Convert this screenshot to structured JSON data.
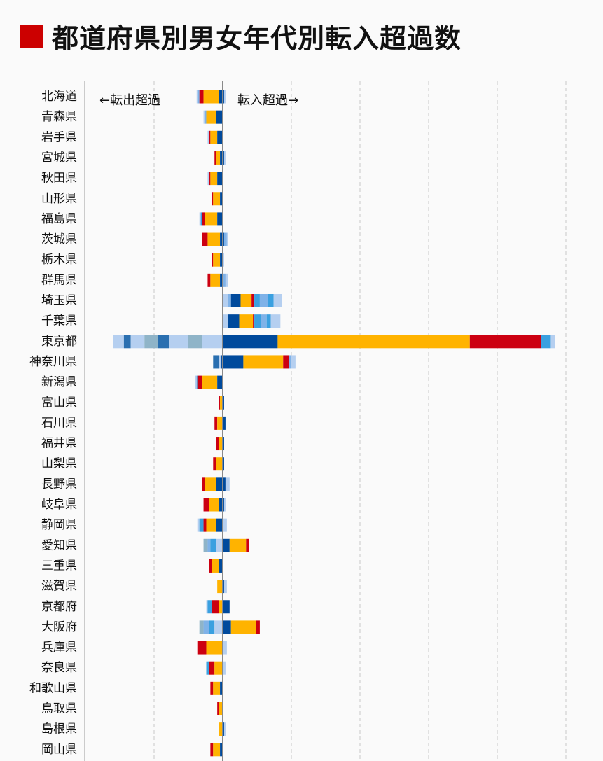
{
  "title": "都道府県別男女年代別転入超過数",
  "colors": {
    "title_mark": "#cc0000",
    "segments": [
      "#b5cff0",
      "#7fb2e8",
      "#3aa0e0",
      "#004a9c",
      "#ffb300",
      "#cc0011",
      "#2a6fb0",
      "#8fb4c8"
    ]
  },
  "chart_data": {
    "type": "bar",
    "orientation": "horizontal-diverging-stacked",
    "title": "都道府県別男女年代別転入超過数",
    "annotations": {
      "left": "←転出超過",
      "right": "転入超過→"
    },
    "grid": true,
    "xlim": [
      -100,
      250
    ],
    "gridlines": [
      -50,
      50,
      100,
      150,
      200,
      250
    ],
    "categories": [
      "北海道",
      "青森県",
      "岩手県",
      "宮城県",
      "秋田県",
      "山形県",
      "福島県",
      "茨城県",
      "栃木県",
      "群馬県",
      "埼玉県",
      "千葉県",
      "東京都",
      "神奈川県",
      "新潟県",
      "富山県",
      "石川県",
      "福井県",
      "山梨県",
      "長野県",
      "岐阜県",
      "静岡県",
      "愛知県",
      "三重県",
      "滋賀県",
      "京都府",
      "大阪府",
      "兵庫県",
      "奈良県",
      "和歌山県",
      "鳥取県",
      "島根県",
      "岡山県"
    ],
    "bars": [
      {
        "neg": [
          [
            0,
            1
          ],
          [
            1,
            1
          ],
          [
            5,
            3
          ],
          [
            4,
            11
          ],
          [
            3,
            3
          ]
        ],
        "pos": [
          [
            3,
            1
          ],
          [
            0,
            1
          ]
        ]
      },
      {
        "neg": [
          [
            0,
            1
          ],
          [
            1,
            1
          ],
          [
            4,
            7
          ],
          [
            3,
            5
          ]
        ],
        "pos": []
      },
      {
        "neg": [
          [
            0,
            1
          ],
          [
            5,
            1
          ],
          [
            4,
            5
          ],
          [
            3,
            4
          ]
        ],
        "pos": []
      },
      {
        "neg": [
          [
            5,
            1
          ],
          [
            4,
            3
          ],
          [
            3,
            2
          ]
        ],
        "pos": [
          [
            3,
            1
          ],
          [
            0,
            1
          ]
        ]
      },
      {
        "neg": [
          [
            0,
            1
          ],
          [
            5,
            1
          ],
          [
            4,
            5
          ],
          [
            3,
            4
          ]
        ],
        "pos": []
      },
      {
        "neg": [
          [
            5,
            1
          ],
          [
            4,
            5
          ],
          [
            3,
            2
          ]
        ],
        "pos": []
      },
      {
        "neg": [
          [
            0,
            1
          ],
          [
            2,
            1
          ],
          [
            5,
            2
          ],
          [
            4,
            9
          ],
          [
            3,
            4
          ]
        ],
        "pos": []
      },
      {
        "neg": [
          [
            5,
            4
          ],
          [
            4,
            9
          ],
          [
            3,
            2
          ]
        ],
        "pos": [
          [
            3,
            1
          ],
          [
            1,
            2
          ],
          [
            0,
            1
          ]
        ]
      },
      {
        "neg": [
          [
            5,
            1
          ],
          [
            4,
            5
          ],
          [
            3,
            2
          ]
        ],
        "pos": [
          [
            0,
            1
          ]
        ]
      },
      {
        "neg": [
          [
            5,
            2
          ],
          [
            4,
            7
          ],
          [
            3,
            2
          ]
        ],
        "pos": [
          [
            1,
            2
          ],
          [
            0,
            2
          ]
        ]
      },
      {
        "neg": [],
        "pos": [
          [
            0,
            4
          ],
          [
            1,
            2
          ],
          [
            3,
            7
          ],
          [
            4,
            8
          ],
          [
            5,
            2
          ],
          [
            2,
            4
          ],
          [
            1,
            6
          ],
          [
            2,
            4
          ],
          [
            0,
            6
          ]
        ]
      },
      {
        "neg": [],
        "pos": [
          [
            0,
            4
          ],
          [
            3,
            8
          ],
          [
            4,
            10
          ],
          [
            5,
            1
          ],
          [
            2,
            5
          ],
          [
            1,
            4
          ],
          [
            2,
            3
          ],
          [
            0,
            7
          ]
        ]
      },
      {
        "neg": [
          [
            0,
            8
          ],
          [
            6,
            5
          ],
          [
            0,
            10
          ],
          [
            7,
            10
          ],
          [
            6,
            8
          ],
          [
            0,
            14
          ],
          [
            7,
            10
          ],
          [
            0,
            15
          ]
        ],
        "pos": [
          [
            3,
            40
          ],
          [
            4,
            140
          ],
          [
            5,
            52
          ],
          [
            2,
            7
          ],
          [
            0,
            3
          ]
        ]
      },
      {
        "neg": [
          [
            6,
            4
          ],
          [
            0,
            2
          ],
          [
            3,
            1
          ]
        ],
        "pos": [
          [
            3,
            15
          ],
          [
            4,
            29
          ],
          [
            5,
            4
          ],
          [
            1,
            2
          ],
          [
            0,
            3
          ]
        ]
      },
      {
        "neg": [
          [
            0,
            1
          ],
          [
            2,
            1
          ],
          [
            5,
            3
          ],
          [
            4,
            11
          ],
          [
            3,
            4
          ]
        ],
        "pos": []
      },
      {
        "neg": [
          [
            5,
            1
          ],
          [
            4,
            2
          ]
        ],
        "pos": [
          [
            3,
            1
          ]
        ]
      },
      {
        "neg": [
          [
            5,
            2
          ],
          [
            4,
            4
          ]
        ],
        "pos": [
          [
            3,
            2
          ]
        ]
      },
      {
        "neg": [
          [
            5,
            2
          ],
          [
            4,
            3
          ]
        ],
        "pos": [
          [
            3,
            1
          ]
        ]
      },
      {
        "neg": [
          [
            5,
            2
          ],
          [
            4,
            5
          ]
        ],
        "pos": [
          [
            3,
            1
          ]
        ]
      },
      {
        "neg": [
          [
            5,
            2
          ],
          [
            4,
            8
          ],
          [
            3,
            5
          ]
        ],
        "pos": [
          [
            3,
            2
          ],
          [
            0,
            3
          ]
        ]
      },
      {
        "neg": [
          [
            5,
            4
          ],
          [
            4,
            7
          ],
          [
            3,
            3
          ]
        ],
        "pos": [
          [
            3,
            1
          ],
          [
            0,
            1
          ]
        ]
      },
      {
        "neg": [
          [
            0,
            1
          ],
          [
            2,
            3
          ],
          [
            5,
            2
          ],
          [
            4,
            7
          ],
          [
            3,
            5
          ]
        ],
        "pos": [
          [
            0,
            3
          ]
        ]
      },
      {
        "neg": [
          [
            7,
            3
          ],
          [
            1,
            2
          ],
          [
            2,
            4
          ],
          [
            0,
            5
          ]
        ],
        "pos": [
          [
            3,
            5
          ],
          [
            4,
            12
          ],
          [
            5,
            2
          ]
        ]
      },
      {
        "neg": [
          [
            5,
            2
          ],
          [
            4,
            5
          ],
          [
            3,
            3
          ]
        ],
        "pos": []
      },
      {
        "neg": [
          [
            4,
            4
          ]
        ],
        "pos": [
          [
            3,
            1
          ],
          [
            0,
            2
          ]
        ]
      },
      {
        "neg": [
          [
            0,
            1
          ],
          [
            2,
            3
          ],
          [
            5,
            5
          ],
          [
            4,
            3
          ]
        ],
        "pos": [
          [
            3,
            5
          ]
        ]
      },
      {
        "neg": [
          [
            7,
            3
          ],
          [
            1,
            4
          ],
          [
            2,
            4
          ],
          [
            0,
            6
          ]
        ],
        "pos": [
          [
            3,
            6
          ],
          [
            4,
            18
          ],
          [
            5,
            3
          ]
        ]
      },
      {
        "neg": [
          [
            5,
            6
          ],
          [
            4,
            12
          ]
        ],
        "pos": [
          [
            0,
            3
          ]
        ]
      },
      {
        "neg": [
          [
            2,
            2
          ],
          [
            5,
            4
          ],
          [
            4,
            6
          ]
        ],
        "pos": [
          [
            0,
            2
          ]
        ]
      },
      {
        "neg": [
          [
            5,
            2
          ],
          [
            4,
            5
          ],
          [
            3,
            2
          ]
        ],
        "pos": []
      },
      {
        "neg": [
          [
            5,
            1
          ],
          [
            4,
            3
          ]
        ],
        "pos": []
      },
      {
        "neg": [
          [
            4,
            3
          ]
        ],
        "pos": [
          [
            3,
            1
          ],
          [
            0,
            1
          ]
        ]
      },
      {
        "neg": [
          [
            5,
            2
          ],
          [
            4,
            5
          ],
          [
            3,
            2
          ]
        ],
        "pos": []
      }
    ]
  }
}
